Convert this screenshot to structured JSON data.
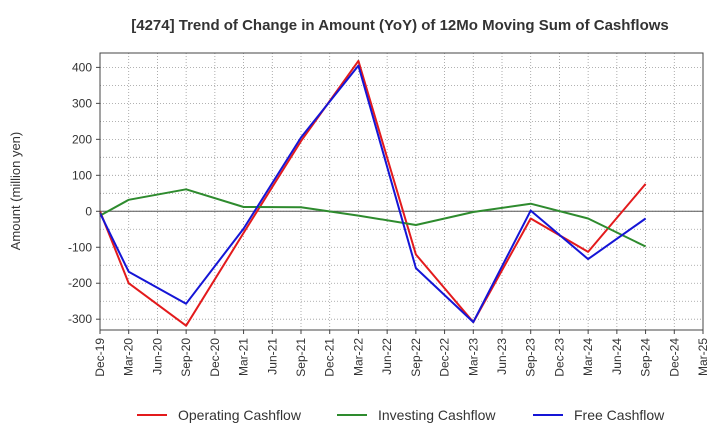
{
  "chart_data": {
    "type": "line",
    "title": "[4274]  Trend of Change in Amount (YoY) of 12Mo Moving Sum of Cashflows",
    "xlabel": "",
    "ylabel": "Amount (million yen)",
    "ylim": [
      -330,
      440
    ],
    "yticks": [
      400,
      300,
      200,
      100,
      0,
      -100,
      -200,
      -300
    ],
    "categories": [
      "Dec-19",
      "Mar-20",
      "Jun-20",
      "Sep-20",
      "Dec-20",
      "Mar-21",
      "Jun-21",
      "Sep-21",
      "Dec-21",
      "Mar-22",
      "Jun-22",
      "Sep-22",
      "Dec-22",
      "Mar-23",
      "Jun-23",
      "Sep-23",
      "Dec-23",
      "Mar-24",
      "Jun-24",
      "Sep-24",
      "Dec-24",
      "Mar-25"
    ],
    "x_labels": [
      "Dec-19",
      "Mar-20",
      "Jun-20",
      "Sep-20",
      "Dec-20",
      "Mar-21",
      "Jun-21",
      "Sep-21",
      "Dec-21",
      "Mar-22",
      "Jun-22",
      "Sep-22",
      "Dec-22",
      "Mar-23",
      "Jun-23",
      "Sep-23",
      "Dec-23",
      "Mar-24",
      "Jun-24",
      "Sep-24",
      "Dec-24",
      "Mar-25"
    ],
    "grid": true,
    "legend_position": "bottom",
    "series": [
      {
        "name": "Operating Cashflow",
        "color": "#e31a1c",
        "points": [
          [
            0,
            0
          ],
          [
            1,
            -200
          ],
          [
            3,
            -318
          ],
          [
            5,
            -60
          ],
          [
            7,
            195
          ],
          [
            9,
            418
          ],
          [
            11,
            -120
          ],
          [
            13,
            -308
          ],
          [
            15,
            -20
          ],
          [
            17,
            -113
          ],
          [
            19,
            76
          ]
        ]
      },
      {
        "name": "Investing Cashflow",
        "color": "#2e8b2e",
        "points": [
          [
            0,
            -12
          ],
          [
            1,
            32
          ],
          [
            3,
            61
          ],
          [
            5,
            12
          ],
          [
            7,
            11
          ],
          [
            9,
            -12
          ],
          [
            11,
            -38
          ],
          [
            13,
            -2
          ],
          [
            15,
            21
          ],
          [
            17,
            -20
          ],
          [
            19,
            -98
          ]
        ]
      },
      {
        "name": "Free Cashflow",
        "color": "#1515d6",
        "points": [
          [
            0,
            -5
          ],
          [
            1,
            -168
          ],
          [
            3,
            -257
          ],
          [
            5,
            -48
          ],
          [
            7,
            205
          ],
          [
            9,
            405
          ],
          [
            11,
            -158
          ],
          [
            13,
            -308
          ],
          [
            15,
            2
          ],
          [
            17,
            -133
          ],
          [
            19,
            -20
          ]
        ]
      }
    ]
  }
}
